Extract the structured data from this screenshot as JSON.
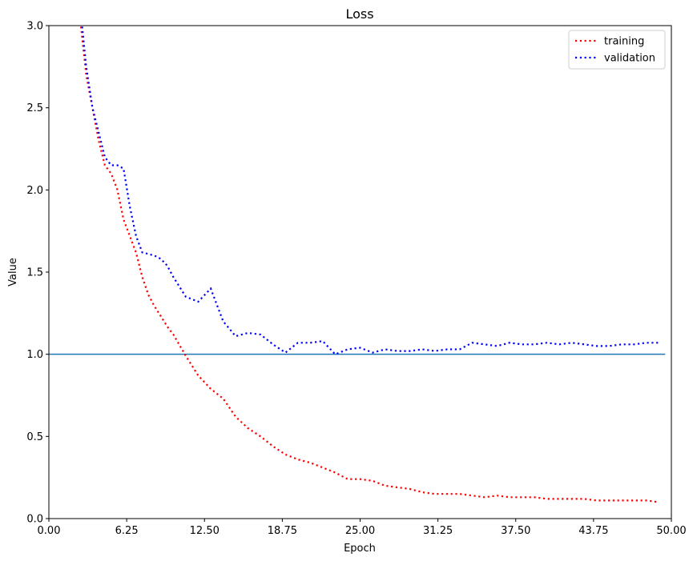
{
  "chart_data": {
    "type": "line",
    "title": "Loss",
    "xlabel": "Epoch",
    "ylabel": "Value",
    "xlim": [
      0,
      50
    ],
    "ylim": [
      0,
      3
    ],
    "xticks": [
      0,
      6.25,
      12.5,
      18.75,
      25,
      31.25,
      37.5,
      43.75,
      50
    ],
    "xtick_labels": [
      "0.00",
      "6.25",
      "12.50",
      "18.75",
      "25.00",
      "31.25",
      "37.50",
      "43.75",
      "50.00"
    ],
    "yticks": [
      0,
      0.5,
      1.0,
      1.5,
      2.0,
      2.5,
      3.0
    ],
    "ytick_labels": [
      "0.0",
      "0.5",
      "1.0",
      "1.5",
      "2.0",
      "2.5",
      "3.0"
    ],
    "grid": false,
    "legend_position": "top-right",
    "reference_line": {
      "y": 1.0,
      "color": "#1f77b4"
    },
    "series": [
      {
        "name": "training",
        "color": "#ff0000",
        "style": "dotted",
        "x": [
          2.5,
          3,
          3.5,
          4,
          4.5,
          5,
          5.5,
          6,
          6.5,
          7,
          7.5,
          8,
          8.5,
          9,
          9.5,
          10,
          11,
          12,
          13,
          14,
          15,
          16,
          17,
          18,
          19,
          20,
          21,
          22,
          23,
          24,
          25,
          26,
          27,
          28,
          29,
          30,
          31,
          32,
          33,
          34,
          35,
          36,
          37,
          38,
          39,
          40,
          41,
          42,
          43,
          44,
          45,
          46,
          47,
          48,
          49
        ],
        "y": [
          3.05,
          2.7,
          2.5,
          2.3,
          2.15,
          2.1,
          2.0,
          1.82,
          1.72,
          1.62,
          1.47,
          1.36,
          1.29,
          1.23,
          1.17,
          1.12,
          0.99,
          0.87,
          0.79,
          0.73,
          0.62,
          0.55,
          0.5,
          0.44,
          0.39,
          0.36,
          0.34,
          0.31,
          0.28,
          0.24,
          0.24,
          0.23,
          0.2,
          0.19,
          0.18,
          0.16,
          0.15,
          0.15,
          0.15,
          0.14,
          0.13,
          0.14,
          0.13,
          0.13,
          0.13,
          0.12,
          0.12,
          0.12,
          0.12,
          0.11,
          0.11,
          0.11,
          0.11,
          0.11,
          0.1
        ]
      },
      {
        "name": "validation",
        "color": "#0000ff",
        "style": "dotted",
        "x": [
          2.6,
          3,
          3.5,
          4,
          4.5,
          5,
          5.5,
          6,
          6.5,
          7,
          7.5,
          8,
          8.5,
          9,
          9.5,
          10,
          11,
          12,
          13,
          14,
          15,
          16,
          17,
          18,
          19,
          20,
          21,
          22,
          23,
          24,
          25,
          26,
          27,
          28,
          29,
          30,
          31,
          32,
          33,
          34,
          35,
          36,
          37,
          38,
          39,
          40,
          41,
          42,
          43,
          44,
          45,
          46,
          47,
          48,
          49
        ],
        "y": [
          3.05,
          2.75,
          2.5,
          2.35,
          2.2,
          2.15,
          2.15,
          2.13,
          1.9,
          1.72,
          1.62,
          1.61,
          1.6,
          1.58,
          1.54,
          1.47,
          1.35,
          1.32,
          1.4,
          1.2,
          1.11,
          1.13,
          1.12,
          1.06,
          1.01,
          1.07,
          1.07,
          1.08,
          1.0,
          1.03,
          1.04,
          1.01,
          1.03,
          1.02,
          1.02,
          1.03,
          1.02,
          1.03,
          1.03,
          1.07,
          1.06,
          1.05,
          1.07,
          1.06,
          1.06,
          1.07,
          1.06,
          1.07,
          1.06,
          1.05,
          1.05,
          1.06,
          1.06,
          1.07,
          1.07
        ]
      }
    ]
  }
}
